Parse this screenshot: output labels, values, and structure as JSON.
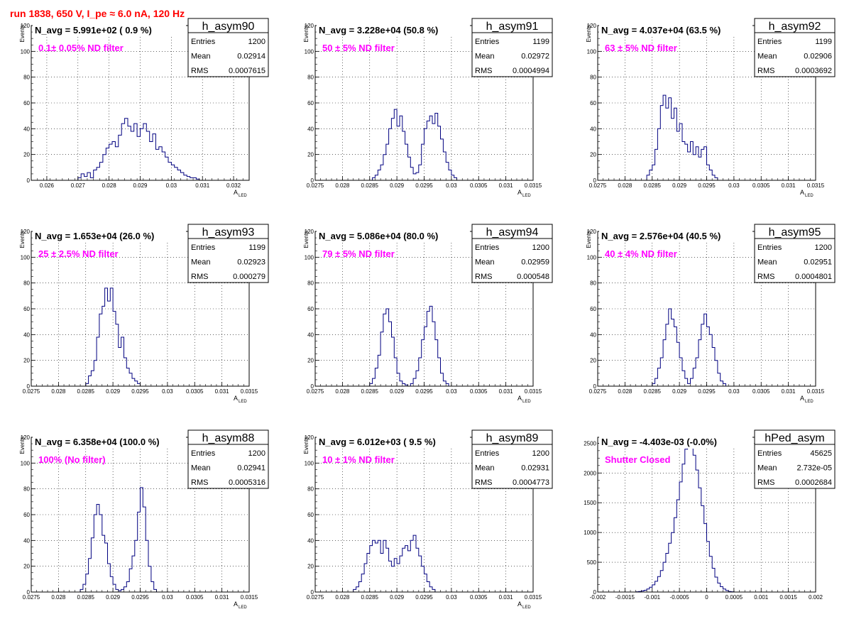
{
  "page": {
    "title": "run 1838,   650 V, I_pe ≈ 6.0 nA, 120 Hz",
    "title_color": "#ff0000",
    "histogram_color": "#000080",
    "annotation_color": "#ff00ff",
    "grid_color": "#000000"
  },
  "chart_data": [
    {
      "type": "histogram",
      "name": "h_asym90",
      "navg": "N_avg = 5.991e+02 ( 0.9 %)",
      "annotation": "0.1± 0.05% ND filter",
      "stats": [
        [
          "Entries",
          "1200"
        ],
        [
          "Mean",
          "0.02914"
        ],
        [
          "RMS",
          "0.0007615"
        ]
      ],
      "ylabel": "Events",
      "xlabel": "A",
      "xlabel_sub": "LED",
      "xlim": [
        0.0255,
        0.0325
      ],
      "ylim": [
        0,
        120
      ],
      "xticks": [
        "0.026",
        "0.027",
        "0.028",
        "0.029",
        "0.03",
        "0.031",
        "0.032"
      ],
      "xtick_values": [
        0.026,
        0.027,
        0.028,
        0.029,
        0.03,
        0.031,
        0.032
      ],
      "yticks": [
        "0",
        "20",
        "40",
        "60",
        "80",
        "100",
        "120"
      ],
      "ytick_values": [
        0,
        20,
        40,
        60,
        80,
        100,
        120
      ],
      "bin_start": 0.027,
      "bin_width": 0.0001,
      "counts": [
        2,
        5,
        3,
        6,
        2,
        8,
        10,
        14,
        20,
        25,
        28,
        30,
        26,
        35,
        44,
        48,
        42,
        38,
        44,
        34,
        40,
        44,
        38,
        30,
        36,
        24,
        26,
        22,
        18,
        14,
        12,
        10,
        8,
        6,
        4,
        3,
        2,
        2,
        1
      ]
    },
    {
      "type": "histogram",
      "name": "h_asym91",
      "navg": "N_avg = 3.228e+04 (50.8 %)",
      "annotation": "50 ± 5% ND filter",
      "stats": [
        [
          "Entries",
          "1199"
        ],
        [
          "Mean",
          "0.02972"
        ],
        [
          "RMS",
          "0.0004994"
        ]
      ],
      "ylabel": "Events",
      "xlabel": "A",
      "xlabel_sub": "LED",
      "xlim": [
        0.0275,
        0.0315
      ],
      "ylim": [
        0,
        120
      ],
      "xticks": [
        "0.0275",
        "0.028",
        "0.0285",
        "0.029",
        "0.0295",
        "0.03",
        "0.0305",
        "0.031",
        "0.0315"
      ],
      "xtick_values": [
        0.0275,
        0.028,
        0.0285,
        0.029,
        0.0295,
        0.03,
        0.0305,
        0.031,
        0.0315
      ],
      "yticks": [
        "0",
        "20",
        "40",
        "60",
        "80",
        "100",
        "120"
      ],
      "ytick_values": [
        0,
        20,
        40,
        60,
        80,
        100,
        120
      ],
      "bin_start": 0.02855,
      "bin_width": 5e-05,
      "counts": [
        2,
        4,
        8,
        12,
        20,
        28,
        40,
        48,
        55,
        42,
        50,
        38,
        28,
        18,
        10,
        5,
        6,
        12,
        28,
        40,
        46,
        50,
        44,
        52,
        42,
        32,
        22,
        14,
        8,
        4,
        2
      ]
    },
    {
      "type": "histogram",
      "name": "h_asym92",
      "navg": "N_avg = 4.037e+04 (63.5 %)",
      "annotation": "63 ± 5% ND filter",
      "stats": [
        [
          "Entries",
          "1199"
        ],
        [
          "Mean",
          "0.02906"
        ],
        [
          "RMS",
          "0.0003692"
        ]
      ],
      "ylabel": "Events",
      "xlabel": "A",
      "xlabel_sub": "LED",
      "xlim": [
        0.0275,
        0.0315
      ],
      "ylim": [
        0,
        120
      ],
      "xticks": [
        "0.0275",
        "0.028",
        "0.0285",
        "0.029",
        "0.0295",
        "0.03",
        "0.0305",
        "0.031",
        "0.0315"
      ],
      "xtick_values": [
        0.0275,
        0.028,
        0.0285,
        0.029,
        0.0295,
        0.03,
        0.0305,
        0.031,
        0.0315
      ],
      "yticks": [
        "0",
        "20",
        "40",
        "60",
        "80",
        "100",
        "120"
      ],
      "ytick_values": [
        0,
        20,
        40,
        60,
        80,
        100,
        120
      ],
      "bin_start": 0.0284,
      "bin_width": 5e-05,
      "counts": [
        4,
        8,
        12,
        24,
        40,
        58,
        66,
        56,
        64,
        48,
        56,
        38,
        44,
        30,
        28,
        22,
        30,
        20,
        26,
        18,
        24,
        26,
        12,
        8,
        4,
        2
      ]
    },
    {
      "type": "histogram",
      "name": "h_asym93",
      "navg": "N_avg = 1.653e+04 (26.0 %)",
      "annotation": "25 ± 2.5% ND filter",
      "stats": [
        [
          "Entries",
          "1199"
        ],
        [
          "Mean",
          "0.02923"
        ],
        [
          "RMS",
          "0.000279"
        ]
      ],
      "ylabel": "Events",
      "xlabel": "A",
      "xlabel_sub": "LED",
      "xlim": [
        0.0275,
        0.0315
      ],
      "ylim": [
        0,
        120
      ],
      "xticks": [
        "0.0275",
        "0.028",
        "0.0285",
        "0.029",
        "0.0295",
        "0.03",
        "0.0305",
        "0.031",
        "0.0315"
      ],
      "xtick_values": [
        0.0275,
        0.028,
        0.0285,
        0.029,
        0.0295,
        0.03,
        0.0305,
        0.031,
        0.0315
      ],
      "yticks": [
        "0",
        "20",
        "40",
        "60",
        "80",
        "100",
        "120"
      ],
      "ytick_values": [
        0,
        20,
        40,
        60,
        80,
        100,
        120
      ],
      "bin_start": 0.0285,
      "bin_width": 5e-05,
      "counts": [
        2,
        8,
        12,
        20,
        38,
        56,
        62,
        76,
        66,
        76,
        58,
        48,
        30,
        38,
        22,
        14,
        10,
        6,
        4,
        2
      ]
    },
    {
      "type": "histogram",
      "name": "h_asym94",
      "navg": "N_avg = 5.086e+04 (80.0 %)",
      "annotation": "79 ± 5% ND filter",
      "stats": [
        [
          "Entries",
          "1200"
        ],
        [
          "Mean",
          "0.02959"
        ],
        [
          "RMS",
          "0.000548"
        ]
      ],
      "ylabel": "Events",
      "xlabel": "A",
      "xlabel_sub": "LED",
      "xlim": [
        0.0275,
        0.0315
      ],
      "ylim": [
        0,
        120
      ],
      "xticks": [
        "0.0275",
        "0.028",
        "0.0285",
        "0.029",
        "0.0295",
        "0.03",
        "0.0305",
        "0.031",
        "0.0315"
      ],
      "xtick_values": [
        0.0275,
        0.028,
        0.0285,
        0.029,
        0.0295,
        0.03,
        0.0305,
        0.031,
        0.0315
      ],
      "yticks": [
        "0",
        "20",
        "40",
        "60",
        "80",
        "100",
        "120"
      ],
      "ytick_values": [
        0,
        20,
        40,
        60,
        80,
        100,
        120
      ],
      "bin_start": 0.0285,
      "bin_width": 5e-05,
      "counts": [
        2,
        6,
        14,
        24,
        42,
        56,
        60,
        50,
        38,
        22,
        10,
        4,
        2,
        1,
        0,
        2,
        6,
        12,
        22,
        36,
        46,
        58,
        62,
        50,
        36,
        22,
        10,
        4,
        2
      ]
    },
    {
      "type": "histogram",
      "name": "h_asym95",
      "navg": "N_avg = 2.576e+04 (40.5 %)",
      "annotation": "40 ± 4% ND filter",
      "stats": [
        [
          "Entries",
          "1200"
        ],
        [
          "Mean",
          "0.02951"
        ],
        [
          "RMS",
          "0.0004801"
        ]
      ],
      "ylabel": "Events",
      "xlabel": "A",
      "xlabel_sub": "LED",
      "xlim": [
        0.0275,
        0.0315
      ],
      "ylim": [
        0,
        120
      ],
      "xticks": [
        "0.0275",
        "0.028",
        "0.0285",
        "0.029",
        "0.0295",
        "0.03",
        "0.0305",
        "0.031",
        "0.0315"
      ],
      "xtick_values": [
        0.0275,
        0.028,
        0.0285,
        0.029,
        0.0295,
        0.03,
        0.0305,
        0.031,
        0.0315
      ],
      "yticks": [
        "0",
        "20",
        "40",
        "60",
        "80",
        "100",
        "120"
      ],
      "ytick_values": [
        0,
        20,
        40,
        60,
        80,
        100,
        120
      ],
      "bin_start": 0.0285,
      "bin_width": 5e-05,
      "counts": [
        2,
        6,
        14,
        22,
        36,
        48,
        60,
        52,
        46,
        34,
        22,
        12,
        6,
        2,
        6,
        14,
        22,
        36,
        48,
        56,
        46,
        40,
        30,
        20,
        10,
        4,
        2
      ]
    },
    {
      "type": "histogram",
      "name": "h_asym88",
      "navg": "N_avg = 6.358e+04 (100.0 %)",
      "annotation": "100% (No filter)",
      "stats": [
        [
          "Entries",
          "1200"
        ],
        [
          "Mean",
          "0.02941"
        ],
        [
          "RMS",
          "0.0005316"
        ]
      ],
      "ylabel": "Events",
      "xlabel": "A",
      "xlabel_sub": "LED",
      "xlim": [
        0.0275,
        0.0315
      ],
      "ylim": [
        0,
        120
      ],
      "xticks": [
        "0.0275",
        "0.028",
        "0.0285",
        "0.029",
        "0.0295",
        "0.03",
        "0.0305",
        "0.031",
        "0.0315"
      ],
      "xtick_values": [
        0.0275,
        0.028,
        0.0285,
        0.029,
        0.0295,
        0.03,
        0.0305,
        0.031,
        0.0315
      ],
      "yticks": [
        "0",
        "20",
        "40",
        "60",
        "80",
        "100",
        "120"
      ],
      "ytick_values": [
        0,
        20,
        40,
        60,
        80,
        100,
        120
      ],
      "bin_start": 0.0284,
      "bin_width": 5e-05,
      "counts": [
        2,
        6,
        14,
        26,
        42,
        60,
        68,
        60,
        44,
        38,
        22,
        12,
        6,
        2,
        1,
        2,
        4,
        8,
        18,
        28,
        40,
        62,
        81,
        66,
        40,
        20,
        8,
        2
      ]
    },
    {
      "type": "histogram",
      "name": "h_asym89",
      "navg": "N_avg = 6.012e+03 ( 9.5 %)",
      "annotation": "10 ± 1% ND filter",
      "stats": [
        [
          "Entries",
          "1200"
        ],
        [
          "Mean",
          "0.02931"
        ],
        [
          "RMS",
          "0.0004773"
        ]
      ],
      "ylabel": "Events",
      "xlabel": "A",
      "xlabel_sub": "LED",
      "xlim": [
        0.0275,
        0.0315
      ],
      "ylim": [
        0,
        120
      ],
      "xticks": [
        "0.0275",
        "0.028",
        "0.0285",
        "0.029",
        "0.0295",
        "0.03",
        "0.0305",
        "0.031",
        "0.0315"
      ],
      "xtick_values": [
        0.0275,
        0.028,
        0.0285,
        0.029,
        0.0295,
        0.03,
        0.0305,
        0.031,
        0.0315
      ],
      "yticks": [
        "0",
        "20",
        "40",
        "60",
        "80",
        "100",
        "120"
      ],
      "ytick_values": [
        0,
        20,
        40,
        60,
        80,
        100,
        120
      ],
      "bin_start": 0.0282,
      "bin_width": 5e-05,
      "counts": [
        2,
        4,
        8,
        14,
        22,
        30,
        36,
        40,
        38,
        40,
        30,
        40,
        34,
        24,
        20,
        26,
        22,
        28,
        34,
        36,
        32,
        40,
        44,
        34,
        28,
        20,
        14,
        8,
        4,
        2
      ]
    },
    {
      "type": "histogram",
      "name": "hPed_asym",
      "navg": "N_avg = -4.403e-03 (-0.0%)",
      "annotation": "Shutter Closed",
      "stats": [
        [
          "Entries",
          "45625"
        ],
        [
          "Mean",
          "2.732e-05"
        ],
        [
          "RMS",
          "0.0002684"
        ]
      ],
      "ylabel": "",
      "xlabel": "",
      "xlabel_sub": "",
      "xlim": [
        -0.002,
        0.002
      ],
      "ylim": [
        0,
        2600
      ],
      "xticks": [
        "-0.002",
        "-0.0015",
        "-0.001",
        "-0.0005",
        "0",
        "0.0005",
        "0.001",
        "0.0015",
        "0.002"
      ],
      "xtick_values": [
        -0.002,
        -0.0015,
        -0.001,
        -0.0005,
        0,
        0.0005,
        0.001,
        0.0015,
        0.002
      ],
      "yticks": [
        "0",
        "500",
        "1000",
        "1500",
        "2000",
        "2500"
      ],
      "ytick_values": [
        0,
        500,
        1000,
        1500,
        2000,
        2500
      ],
      "bin_start": -0.0013,
      "bin_width": 5e-05,
      "counts": [
        5,
        10,
        18,
        30,
        50,
        80,
        120,
        180,
        260,
        360,
        500,
        650,
        820,
        1000,
        1250,
        1550,
        1850,
        2150,
        2400,
        2550,
        2450,
        2300,
        2050,
        1750,
        1450,
        1150,
        850,
        600,
        400,
        250,
        150,
        90,
        50,
        25,
        10,
        5
      ]
    }
  ]
}
